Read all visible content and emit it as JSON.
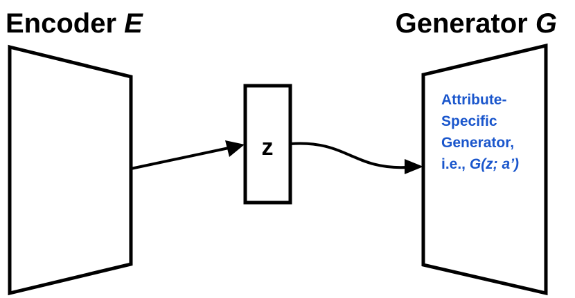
{
  "encoder": {
    "title_word": "Encoder",
    "title_symbol": "E"
  },
  "generator": {
    "title_word": "Generator",
    "title_symbol": "G",
    "description": {
      "line1": "Attribute-",
      "line2": "Specific",
      "line3": "Generator,",
      "line4_prefix": "i.e., ",
      "line4_formula": "G(z; a’)"
    }
  },
  "latent": {
    "label": "z"
  },
  "colors": {
    "outline": "#000000",
    "generator_text": "#1a56cc"
  }
}
